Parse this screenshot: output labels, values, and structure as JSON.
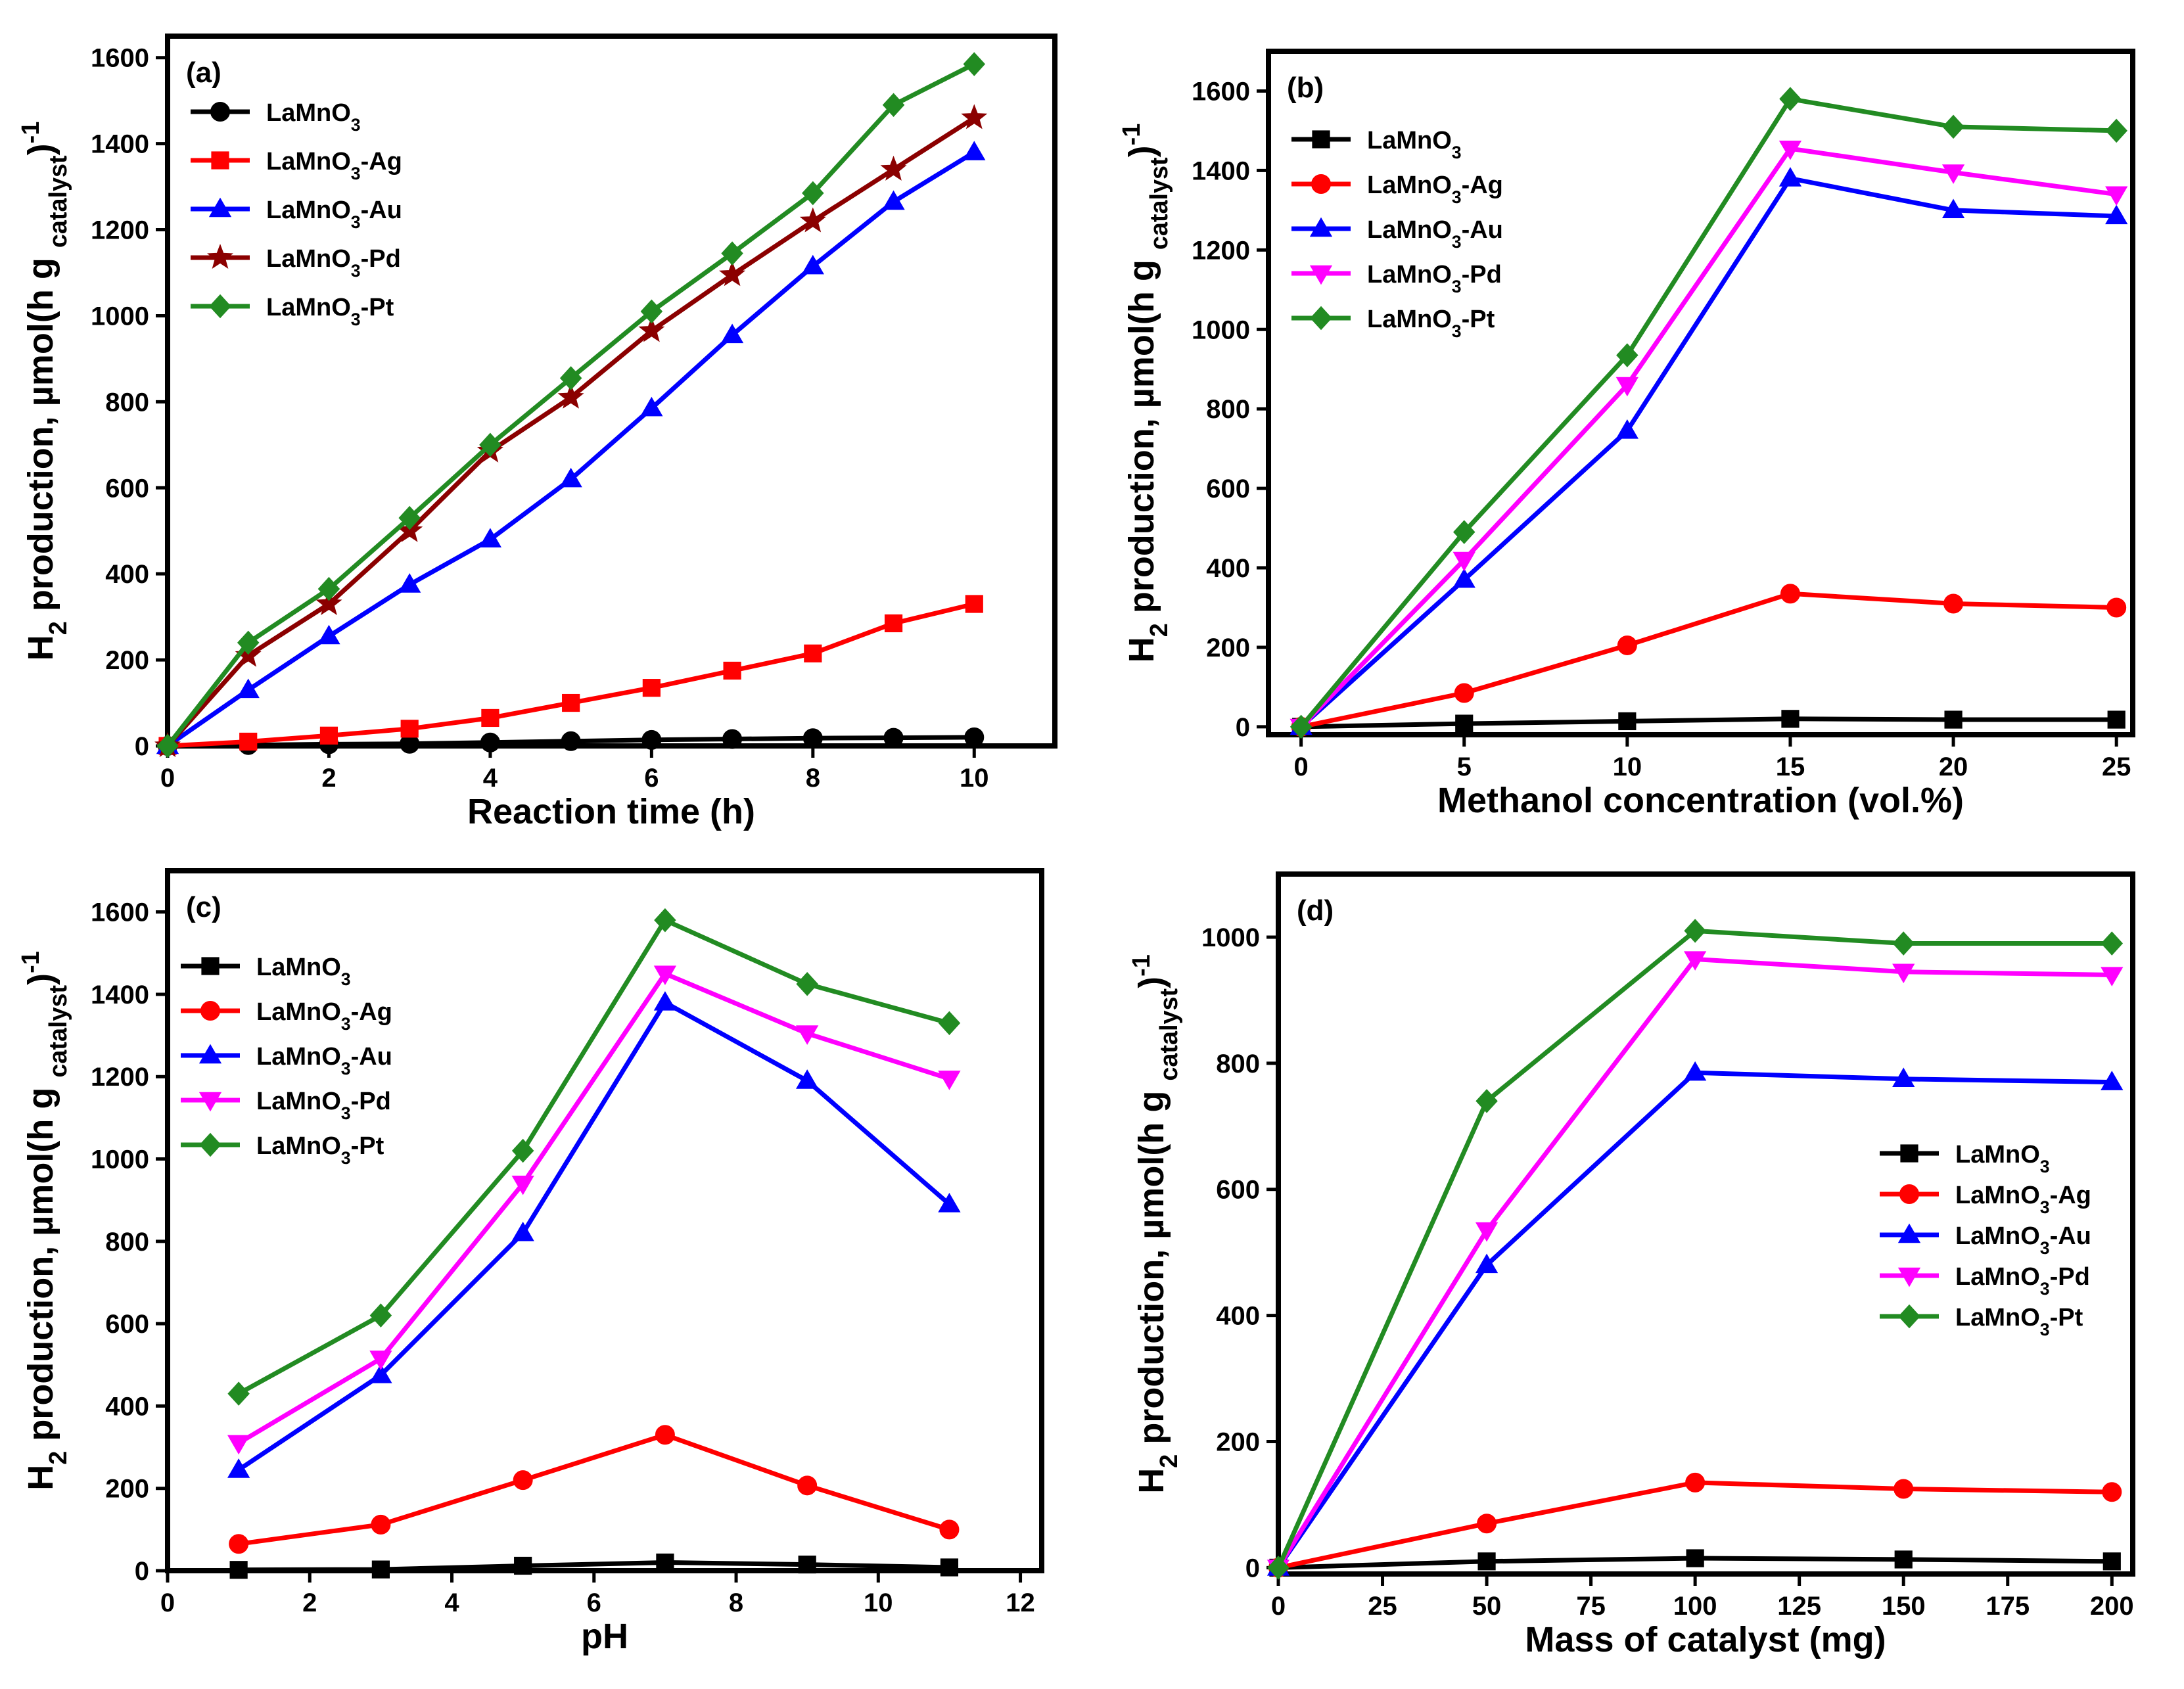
{
  "chart_data": [
    {
      "type": "line",
      "panel_label": "(a)",
      "xlabel": "Reaction time (h)",
      "ylabel": "H2 production, µmol(h g catalyst)-1",
      "xlim": [
        0,
        11
      ],
      "ylim": [
        0,
        1650
      ],
      "xticks": [
        0,
        2,
        4,
        6,
        8,
        10
      ],
      "yticks": [
        0,
        200,
        400,
        600,
        800,
        1000,
        1200,
        1400,
        1600
      ],
      "legend_position": "top-left",
      "series": [
        {
          "name": "LaMnO3",
          "color": "#000000",
          "marker": "circle",
          "x": [
            0,
            1,
            2,
            3,
            4,
            5,
            6,
            7,
            8,
            9,
            10
          ],
          "values": [
            0,
            2,
            4,
            5,
            8,
            11,
            14,
            16,
            18,
            19,
            20
          ]
        },
        {
          "name": "LaMnO3-Ag",
          "color": "#ff0000",
          "marker": "square",
          "x": [
            0,
            1,
            2,
            3,
            4,
            5,
            6,
            7,
            8,
            9,
            10
          ],
          "values": [
            0,
            10,
            24,
            40,
            65,
            100,
            135,
            175,
            215,
            285,
            330
          ]
        },
        {
          "name": "LaMnO3-Au",
          "color": "#0000ff",
          "marker": "triangle-up",
          "x": [
            0,
            1,
            2,
            3,
            4,
            5,
            6,
            7,
            8,
            9,
            10
          ],
          "values": [
            0,
            130,
            255,
            375,
            480,
            620,
            785,
            955,
            1115,
            1265,
            1380
          ]
        },
        {
          "name": "LaMnO3-Pd",
          "color": "#8b0000",
          "marker": "star",
          "x": [
            0,
            1,
            2,
            3,
            4,
            5,
            6,
            7,
            8,
            9,
            10
          ],
          "values": [
            0,
            210,
            330,
            500,
            685,
            810,
            965,
            1095,
            1220,
            1340,
            1460
          ]
        },
        {
          "name": "LaMnO3-Pt",
          "color": "#228b22",
          "marker": "diamond",
          "x": [
            0,
            1,
            2,
            3,
            4,
            5,
            6,
            7,
            8,
            9,
            10
          ],
          "values": [
            0,
            240,
            365,
            530,
            700,
            855,
            1010,
            1145,
            1285,
            1490,
            1585
          ]
        }
      ]
    },
    {
      "type": "line",
      "panel_label": "(b)",
      "xlabel": "Methanol concentration (vol.%)",
      "ylabel": "H2 production, µmol(h g catalyst)-1",
      "xlim": [
        -1,
        25.5
      ],
      "ylim": [
        -20,
        1700
      ],
      "xticks": [
        0,
        5,
        10,
        15,
        20,
        25
      ],
      "yticks": [
        0,
        200,
        400,
        600,
        800,
        1000,
        1200,
        1400,
        1600
      ],
      "legend_position": "top-left",
      "series": [
        {
          "name": "LaMnO3",
          "color": "#000000",
          "marker": "square",
          "x": [
            0,
            5,
            10,
            15,
            20,
            25
          ],
          "values": [
            0,
            8,
            14,
            20,
            18,
            18
          ]
        },
        {
          "name": "LaMnO3-Ag",
          "color": "#ff0000",
          "marker": "circle",
          "x": [
            0,
            5,
            10,
            15,
            20,
            25
          ],
          "values": [
            0,
            85,
            205,
            335,
            310,
            300
          ]
        },
        {
          "name": "LaMnO3-Au",
          "color": "#0000ff",
          "marker": "triangle-up",
          "x": [
            0,
            5,
            10,
            15,
            20,
            25
          ],
          "values": [
            0,
            370,
            745,
            1380,
            1300,
            1285
          ]
        },
        {
          "name": "LaMnO3-Pd",
          "color": "#ff00ff",
          "marker": "triangle-down",
          "x": [
            0,
            5,
            10,
            15,
            20,
            25
          ],
          "values": [
            0,
            420,
            860,
            1455,
            1395,
            1340
          ]
        },
        {
          "name": "LaMnO3-Pt",
          "color": "#228b22",
          "marker": "diamond",
          "x": [
            0,
            5,
            10,
            15,
            20,
            25
          ],
          "values": [
            0,
            490,
            935,
            1580,
            1510,
            1500
          ]
        }
      ]
    },
    {
      "type": "line",
      "panel_label": "(c)",
      "xlabel": "pH",
      "ylabel": "H2 production, µmol(h g catalyst)-1",
      "xlim": [
        0,
        12.3
      ],
      "ylim": [
        0,
        1700
      ],
      "xticks": [
        0,
        2,
        4,
        6,
        8,
        10,
        12
      ],
      "yticks": [
        0,
        200,
        400,
        600,
        800,
        1000,
        1200,
        1400,
        1600
      ],
      "legend_position": "top-left",
      "series": [
        {
          "name": "LaMnO3",
          "color": "#000000",
          "marker": "square",
          "x": [
            1,
            3,
            5,
            7,
            9,
            11
          ],
          "values": [
            2,
            3,
            12,
            20,
            15,
            8
          ]
        },
        {
          "name": "LaMnO3-Ag",
          "color": "#ff0000",
          "marker": "circle",
          "x": [
            1,
            3,
            5,
            7,
            9,
            11
          ],
          "values": [
            65,
            112,
            220,
            330,
            207,
            100
          ]
        },
        {
          "name": "LaMnO3-Au",
          "color": "#0000ff",
          "marker": "triangle-up",
          "x": [
            1,
            3,
            5,
            7,
            9,
            11
          ],
          "values": [
            245,
            475,
            820,
            1380,
            1190,
            890
          ]
        },
        {
          "name": "LaMnO3-Pd",
          "color": "#ff00ff",
          "marker": "triangle-down",
          "x": [
            1,
            3,
            5,
            7,
            9,
            11
          ],
          "values": [
            310,
            515,
            940,
            1450,
            1305,
            1195
          ]
        },
        {
          "name": "LaMnO3-Pt",
          "color": "#228b22",
          "marker": "diamond",
          "x": [
            1,
            3,
            5,
            7,
            9,
            11
          ],
          "values": [
            430,
            620,
            1020,
            1580,
            1425,
            1330
          ]
        }
      ]
    },
    {
      "type": "line",
      "panel_label": "(d)",
      "xlabel": "Mass of catalyst (mg)",
      "ylabel": "H2 production, µmol(h g catalyst)-1",
      "xlim": [
        0,
        205
      ],
      "ylim": [
        -10,
        1100
      ],
      "xticks": [
        0,
        25,
        50,
        75,
        100,
        125,
        150,
        175,
        200
      ],
      "yticks": [
        0,
        200,
        400,
        600,
        800,
        1000
      ],
      "legend_position": "middle-right",
      "series": [
        {
          "name": "LaMnO3",
          "color": "#000000",
          "marker": "square",
          "x": [
            0,
            50,
            100,
            150,
            200
          ],
          "values": [
            0,
            10,
            15,
            13,
            10
          ]
        },
        {
          "name": "LaMnO3-Ag",
          "color": "#ff0000",
          "marker": "circle",
          "x": [
            0,
            50,
            100,
            150,
            200
          ],
          "values": [
            0,
            70,
            135,
            125,
            120
          ]
        },
        {
          "name": "LaMnO3-Au",
          "color": "#0000ff",
          "marker": "triangle-up",
          "x": [
            0,
            50,
            100,
            150,
            200
          ],
          "values": [
            0,
            480,
            785,
            775,
            770
          ]
        },
        {
          "name": "LaMnO3-Pd",
          "color": "#ff00ff",
          "marker": "triangle-down",
          "x": [
            0,
            50,
            100,
            150,
            200
          ],
          "values": [
            0,
            535,
            965,
            945,
            940
          ]
        },
        {
          "name": "LaMnO3-Pt",
          "color": "#228b22",
          "marker": "diamond",
          "x": [
            0,
            50,
            100,
            150,
            200
          ],
          "values": [
            0,
            740,
            1010,
            990,
            990
          ]
        }
      ]
    }
  ]
}
